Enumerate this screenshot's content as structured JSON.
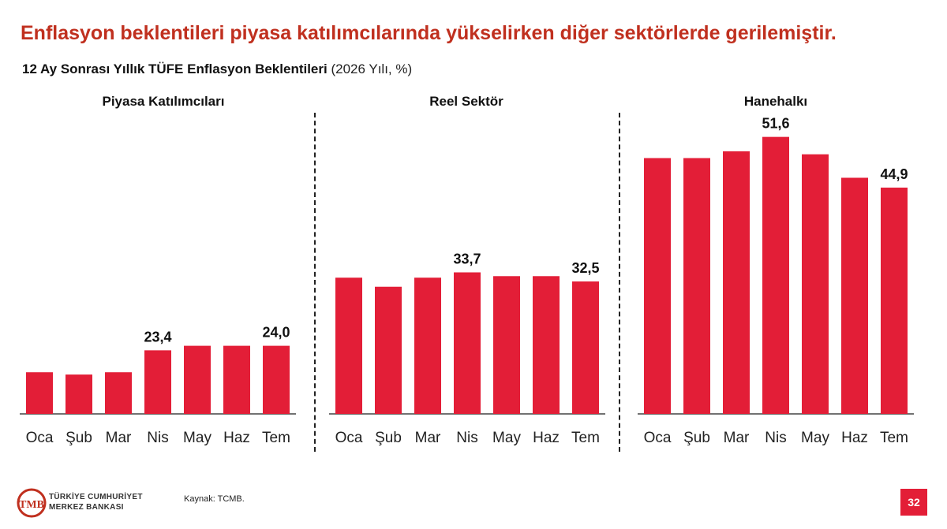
{
  "headline": "Enflasyon beklentileri piyasa katılımcılarında yükselirken diğer sektörlerde gerilemiştir.",
  "subtitle": {
    "main": "12 Ay Sonrası Yıllık TÜFE Enflasyon Beklentileri",
    "note": "(2026 Yılı, %)"
  },
  "chart_data": [
    {
      "type": "bar",
      "title": "Piyasa Katılımcıları",
      "categories": [
        "Oca",
        "Şub",
        "Mar",
        "Nis",
        "May",
        "Haz",
        "Tem"
      ],
      "values": [
        20.5,
        20.2,
        20.5,
        23.4,
        24.0,
        24.0,
        24.0
      ],
      "data_labels": [
        "",
        "",
        "",
        "23,4",
        "",
        "",
        "24,0"
      ],
      "ylim": [
        15,
        55
      ],
      "color": "#e31e37"
    },
    {
      "type": "bar",
      "title": "Reel Sektör",
      "categories": [
        "Oca",
        "Şub",
        "Mar",
        "Nis",
        "May",
        "Haz",
        "Tem"
      ],
      "values": [
        33.0,
        31.8,
        33.0,
        33.7,
        33.2,
        33.2,
        32.5
      ],
      "data_labels": [
        "",
        "",
        "",
        "33,7",
        "",
        "",
        "32,5"
      ],
      "ylim": [
        15,
        55
      ],
      "color": "#e31e37"
    },
    {
      "type": "bar",
      "title": "Hanehalkı",
      "categories": [
        "Oca",
        "Şub",
        "Mar",
        "Nis",
        "May",
        "Haz",
        "Tem"
      ],
      "values": [
        48.8,
        48.8,
        49.7,
        51.6,
        49.3,
        46.2,
        44.9
      ],
      "data_labels": [
        "",
        "",
        "",
        "51,6",
        "",
        "",
        "44,9"
      ],
      "ylim": [
        15,
        55
      ],
      "color": "#e31e37"
    }
  ],
  "footer": {
    "org_line1": "TÜRKİYE CUMHURİYET",
    "org_line2": "MERKEZ BANKASI",
    "source": "Kaynak: TCMB.",
    "page_number": "32"
  }
}
